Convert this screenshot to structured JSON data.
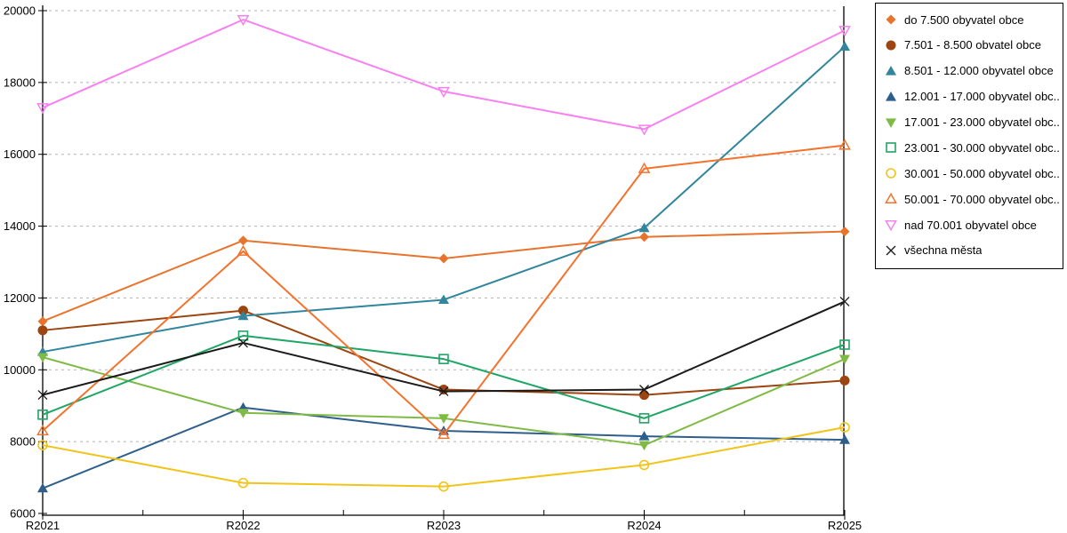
{
  "chart_data": {
    "type": "line",
    "title": "",
    "xlabel": "",
    "ylabel": "",
    "categories": [
      "R2021",
      "R2022",
      "R2023",
      "R2024",
      "R2025"
    ],
    "ylim": [
      6000,
      20000
    ],
    "y_ticks": [
      "6000",
      "8000",
      "10000",
      "12000",
      "14000",
      "16000",
      "18000",
      "20000"
    ],
    "grid": "horizontal-dashed",
    "legend_position": "right",
    "series": [
      {
        "name": "do 7.500 obyvatel obce",
        "color": "#e8732c",
        "marker": "diamond-filled",
        "values": [
          11350,
          13600,
          13100,
          13700,
          13850
        ]
      },
      {
        "name": "7.501 - 8.500 obvatel obce",
        "color": "#9c4510",
        "marker": "circle-filled",
        "values": [
          11100,
          11650,
          9450,
          9300,
          9700
        ]
      },
      {
        "name": "8.501 - 12.000 obyvatel obce",
        "color": "#31859c",
        "marker": "triangle-up-filled",
        "values": [
          10500,
          11500,
          11950,
          13950,
          19000
        ]
      },
      {
        "name": "12.001 - 17.000 obyvatel obc...",
        "color": "#2e5f8c",
        "marker": "triangle-up-filled",
        "values": [
          6700,
          8950,
          8300,
          8150,
          8050
        ]
      },
      {
        "name": "17.001 - 23.000 obyvatel obc...",
        "color": "#7fba45",
        "marker": "triangle-down-filled",
        "values": [
          10350,
          8800,
          8650,
          7900,
          10300
        ]
      },
      {
        "name": "23.001 - 30.000 obyvatel obc...",
        "color": "#1fa564",
        "marker": "square-open",
        "values": [
          8750,
          10950,
          10300,
          8650,
          10700
        ]
      },
      {
        "name": "30.001 - 50.000 obyvatel obc...",
        "color": "#f0c419",
        "marker": "circle-open",
        "values": [
          7900,
          6850,
          6750,
          7350,
          8400
        ]
      },
      {
        "name": "50.001 - 70.000 obyvatel obc...",
        "color": "#f4722b",
        "marker": "triangle-up-open",
        "values": [
          8300,
          13300,
          8200,
          15600,
          16250
        ]
      },
      {
        "name": "nad 70.001 obyvatel obce",
        "color": "#f880f0",
        "marker": "triangle-down-open",
        "values": [
          17300,
          19750,
          17750,
          16700,
          19450
        ]
      },
      {
        "name": "všechna města",
        "color": "#1a1a1a",
        "marker": "x",
        "values": [
          9300,
          10750,
          9400,
          9450,
          11900
        ]
      }
    ],
    "colors": {
      "axis": "#000000",
      "gridline": "#b3b3b3",
      "background": "#ffffff"
    }
  }
}
